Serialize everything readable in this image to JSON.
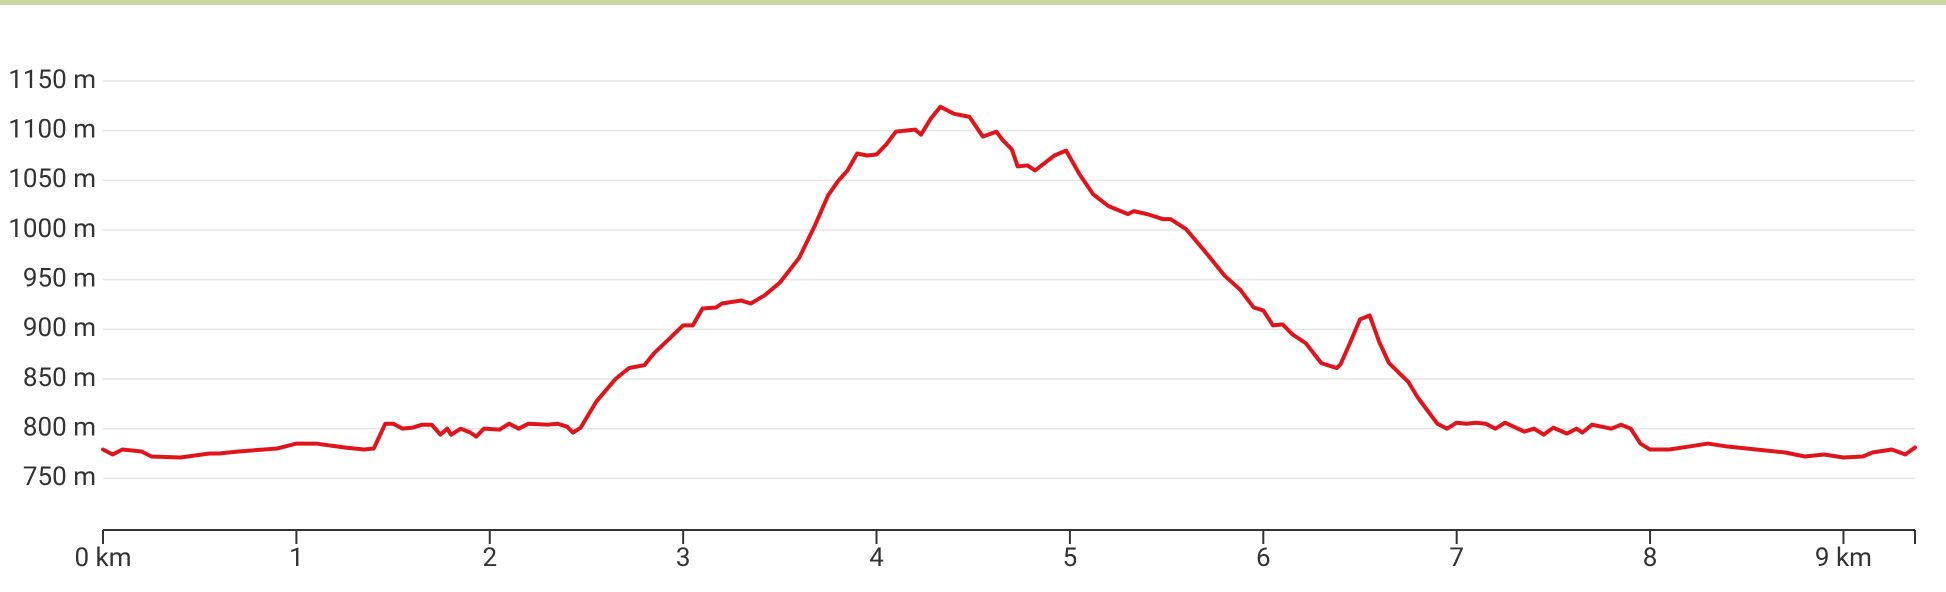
{
  "chart_data": {
    "type": "line",
    "x": [
      0,
      0.05,
      0.1,
      0.2,
      0.25,
      0.4,
      0.55,
      0.6,
      0.7,
      0.9,
      1.0,
      1.1,
      1.25,
      1.35,
      1.4,
      1.46,
      1.5,
      1.55,
      1.6,
      1.65,
      1.7,
      1.745,
      1.78,
      1.8,
      1.85,
      1.9,
      1.93,
      1.97,
      2.05,
      2.1,
      2.15,
      2.2,
      2.3,
      2.35,
      2.4,
      2.43,
      2.47,
      2.55,
      2.65,
      2.72,
      2.8,
      2.85,
      2.92,
      3.0,
      3.05,
      3.1,
      3.17,
      3.2,
      3.3,
      3.35,
      3.42,
      3.5,
      3.6,
      3.68,
      3.75,
      3.8,
      3.85,
      3.9,
      3.95,
      4.0,
      4.05,
      4.1,
      4.2,
      4.23,
      4.28,
      4.33,
      4.4,
      4.48,
      4.55,
      4.62,
      4.65,
      4.7,
      4.73,
      4.78,
      4.82,
      4.86,
      4.92,
      4.98,
      5.05,
      5.12,
      5.2,
      5.3,
      5.33,
      5.4,
      5.48,
      5.52,
      5.6,
      5.7,
      5.8,
      5.88,
      5.95,
      6.0,
      6.05,
      6.1,
      6.15,
      6.22,
      6.3,
      6.38,
      6.4,
      6.45,
      6.5,
      6.55,
      6.6,
      6.65,
      6.75,
      6.8,
      6.9,
      6.95,
      7.0,
      7.05,
      7.1,
      7.15,
      7.2,
      7.25,
      7.35,
      7.4,
      7.45,
      7.5,
      7.57,
      7.62,
      7.65,
      7.7,
      7.8,
      7.85,
      7.9,
      7.95,
      8.0,
      8.1,
      8.2,
      8.3,
      8.4,
      8.5,
      8.7,
      8.8,
      8.9,
      9.0,
      9.1,
      9.15,
      9.25,
      9.32,
      9.37
    ],
    "series": [
      {
        "color": "#e0141b",
        "values": [
          779,
          774,
          779,
          777,
          772,
          771,
          775,
          775,
          777,
          780,
          785,
          785,
          781,
          779,
          780,
          805,
          805,
          800,
          801,
          804,
          804,
          794,
          800,
          794,
          800,
          796,
          792,
          800,
          799,
          805,
          800,
          805,
          804,
          805,
          802,
          796,
          801,
          827,
          850,
          861,
          864,
          876,
          889,
          904,
          904,
          921,
          922,
          926,
          929,
          926,
          934,
          947,
          972,
          1004,
          1035,
          1049,
          1060,
          1077,
          1075,
          1076,
          1086,
          1099,
          1101,
          1096,
          1112,
          1124,
          1117,
          1114,
          1094,
          1099,
          1091,
          1081,
          1064,
          1065,
          1060,
          1066,
          1075,
          1080,
          1056,
          1036,
          1024,
          1016,
          1019,
          1016,
          1011,
          1011,
          1001,
          978,
          954,
          940,
          922,
          919,
          904,
          905,
          895,
          886,
          866,
          861,
          865,
          887,
          910,
          914,
          887,
          866,
          847,
          831,
          805,
          800,
          806,
          805,
          806,
          805,
          800,
          806,
          797,
          800,
          794,
          801,
          795,
          800,
          796,
          804,
          800,
          804,
          800,
          785,
          779,
          779,
          782,
          785,
          782,
          780,
          776,
          772,
          774,
          771,
          772,
          776,
          779,
          774,
          781
        ]
      }
    ],
    "xlim": [
      0,
      9.37
    ],
    "xticks": [
      {
        "value": 0,
        "label": "0 km"
      },
      1,
      2,
      3,
      4,
      5,
      6,
      7,
      8,
      {
        "value": 9,
        "label": "9 km"
      }
    ],
    "ylim": [
      700,
      1150
    ],
    "yticks": [
      {
        "value": 750,
        "label": "750 m"
      },
      {
        "value": 800,
        "label": "800 m"
      },
      {
        "value": 850,
        "label": "850 m"
      },
      {
        "value": 900,
        "label": "900 m"
      },
      {
        "value": 950,
        "label": "950 m"
      },
      {
        "value": 1000,
        "label": "1000 m"
      },
      {
        "value": 1050,
        "label": "1050 m"
      },
      {
        "value": 1100,
        "label": "1100 m"
      },
      {
        "value": 1150,
        "label": "1150 m"
      }
    ],
    "grid": true
  }
}
